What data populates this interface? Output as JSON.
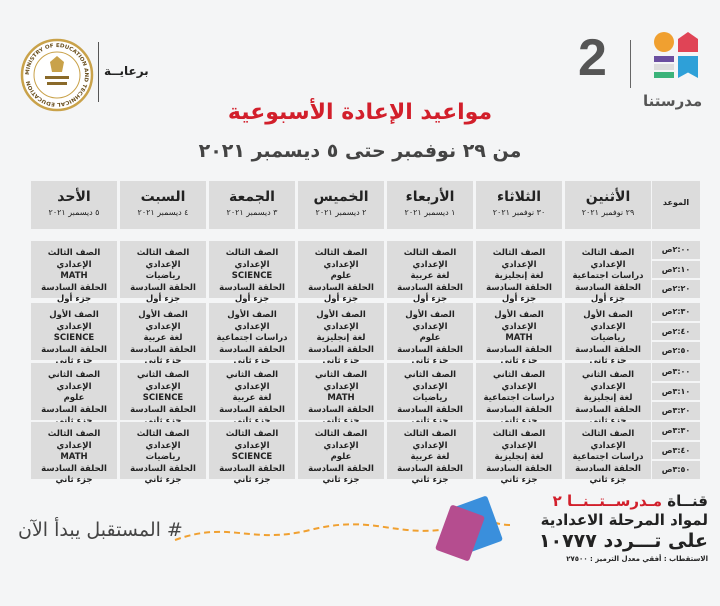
{
  "header": {
    "logo_number": "2",
    "logo_name": "مدرستنا",
    "sponsor_label": "برعايــة",
    "sponsor_seal_text": "MINISTRY OF EDUCATION AND TECHNICAL EDUCATION",
    "title": "مواعيد الإعادة الأسبوعية",
    "subtitle": "من ٢٩ نوفمبر حتى ٥ ديسمبر ٢٠٢١"
  },
  "colors": {
    "title": "#d21f2b",
    "cell": "#dcdcdc",
    "logo_orange": "#f0a030",
    "logo_red": "#e04456",
    "logo_purple": "#6b4fa0",
    "logo_green": "#3bb37a",
    "logo_blue": "#2ea0d8"
  },
  "table": {
    "time_header": "الموعد",
    "days": [
      {
        "name": "الأثنين",
        "date": "٢٩ نوفمبر ٢٠٢١"
      },
      {
        "name": "الثلاثاء",
        "date": "٣٠ نوفمبر ٢٠٢١"
      },
      {
        "name": "الأربعاء",
        "date": "١ ديسمبر ٢٠٢١"
      },
      {
        "name": "الخميس",
        "date": "٢ ديسمبر ٢٠٢١"
      },
      {
        "name": "الجمعة",
        "date": "٣ ديسمبر ٢٠٢١"
      },
      {
        "name": "السبت",
        "date": "٤ ديسمبر ٢٠٢١"
      },
      {
        "name": "الأحد",
        "date": "٥ ديسمبر ٢٠٢١"
      }
    ],
    "times": [
      "٢:٠٠ص",
      "٢:١٠ص",
      "٢:٢٠ص",
      "٢:٣٠ص",
      "٢:٤٠ص",
      "٢:٥٠ص",
      "٣:٠٠ص",
      "٣:١٠ص",
      "٣:٢٠ص",
      "٣:٣٠ص",
      "٣:٤٠ص",
      "٣:٥٠ص"
    ],
    "rows": [
      {
        "grade": "الصف الثالث الإعدادي",
        "episode": "الحلقة السادسة",
        "part": "جزء أول",
        "subjects": [
          "دراسات اجتماعية",
          "لغة إنجليزية",
          "لغة عربية",
          "علوم",
          "SCIENCE",
          "رياضيات",
          "MATH"
        ]
      },
      {
        "grade": "الصف الأول الإعدادي",
        "episode": "الحلقة السادسة",
        "part": "جزء ثاني",
        "subjects": [
          "رياضيات",
          "MATH",
          "علوم",
          "لغة إنجليزية",
          "دراسات اجتماعية",
          "لغة عربية",
          "SCIENCE"
        ]
      },
      {
        "grade": "الصف الثاني الإعدادي",
        "episode": "الحلقة السادسة",
        "part": "جزء ثاني",
        "subjects": [
          "لغة إنجليزية",
          "دراسات اجتماعية",
          "رياضيات",
          "MATH",
          "لغة عربية",
          "SCIENCE",
          "علوم"
        ]
      },
      {
        "grade": "الصف الثالث الإعدادي",
        "episode": "الحلقة السادسة",
        "part": "جزء ثاني",
        "subjects": [
          "دراسات اجتماعية",
          "لغة إنجليزية",
          "لغة عربية",
          "علوم",
          "SCIENCE",
          "رياضيات",
          "MATH"
        ]
      }
    ]
  },
  "footer": {
    "channel_prefix": "قنــاة ",
    "channel_name": "مـدرســتــنــا ٢",
    "line2": "لمواد المرحلة الاعدادية",
    "line3": "على تـــردد ١٠٧٧٧",
    "line4": "الاستقطاب : أفقي معدل الترميز : ٢٧٥٠٠",
    "hashtag": "# المستقبل يبدأ الآن"
  }
}
